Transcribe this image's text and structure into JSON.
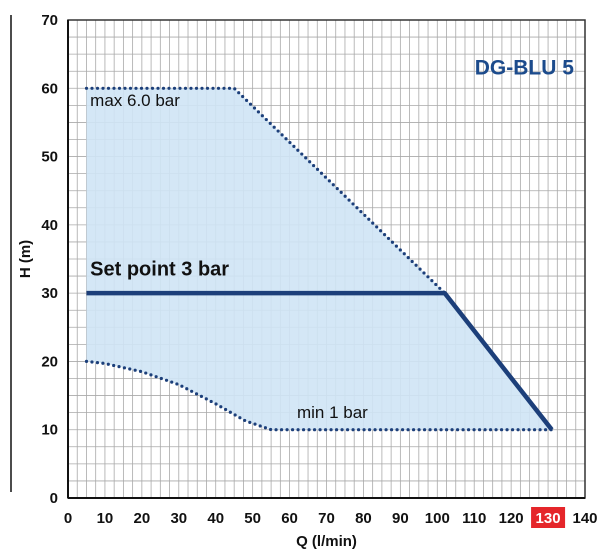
{
  "chart_data": {
    "type": "area",
    "title": "DG-BLU 5",
    "xlabel": "Q (l/min)",
    "ylabel": "H (m)",
    "xlim": [
      0,
      140
    ],
    "ylim": [
      0,
      70
    ],
    "xticks": [
      0,
      10,
      20,
      30,
      40,
      50,
      60,
      70,
      80,
      90,
      100,
      110,
      120,
      130,
      140
    ],
    "yticks": [
      0,
      10,
      20,
      30,
      40,
      50,
      60,
      70
    ],
    "highlight_xtick": 130,
    "grid": true,
    "series": [
      {
        "name": "max 6.0 bar",
        "style": "dotted",
        "points": [
          [
            5,
            60
          ],
          [
            45,
            60
          ],
          [
            102,
            30
          ]
        ]
      },
      {
        "name": "Set point 3 bar",
        "style": "solid",
        "points": [
          [
            5,
            30
          ],
          [
            102,
            30
          ],
          [
            131,
            10
          ]
        ]
      },
      {
        "name": "min 1 bar",
        "style": "dotted",
        "points": [
          [
            5,
            20
          ],
          [
            10,
            19.7
          ],
          [
            20,
            18.5
          ],
          [
            30,
            16.6
          ],
          [
            40,
            13.8
          ],
          [
            48,
            11.3
          ],
          [
            55,
            10
          ],
          [
            131,
            10
          ]
        ]
      }
    ],
    "region": [
      [
        5,
        60
      ],
      [
        45,
        60
      ],
      [
        102,
        30
      ],
      [
        131,
        10
      ],
      [
        55,
        10
      ],
      [
        48,
        11.3
      ],
      [
        40,
        13.8
      ],
      [
        30,
        16.6
      ],
      [
        20,
        18.5
      ],
      [
        10,
        19.7
      ],
      [
        5,
        20
      ]
    ],
    "annotations": [
      {
        "text": "max 6.0 bar",
        "x": 6,
        "y": 57.4,
        "style": "normal"
      },
      {
        "text": "Set point 3 bar",
        "x": 6,
        "y": 32.6,
        "style": "bold"
      },
      {
        "text": "min 1 bar",
        "x": 62,
        "y": 11.7,
        "style": "normal"
      }
    ],
    "colors": {
      "fill": "#cfe4f5",
      "line": "#1c3f7a",
      "grid": "#a9a9a9",
      "title": "#1c4b8c",
      "highlight": "#e5262a"
    }
  }
}
